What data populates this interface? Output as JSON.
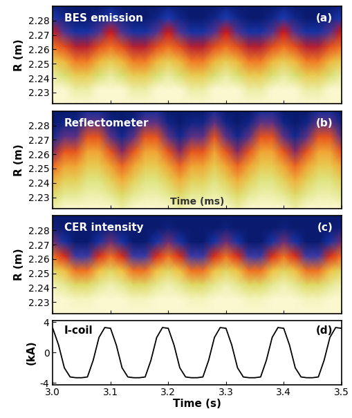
{
  "chart_data": [
    {
      "type": "heatmap",
      "title": "BES emission",
      "annotations": [
        "(a)"
      ],
      "y_label": "R (m)",
      "x": [
        3.0,
        3.02,
        3.04,
        3.06,
        3.08,
        3.1,
        3.12,
        3.14,
        3.16,
        3.18,
        3.2,
        3.22,
        3.24,
        3.26,
        3.28,
        3.3,
        3.32,
        3.34,
        3.36,
        3.38,
        3.4,
        3.42,
        3.44,
        3.46,
        3.48,
        3.5
      ],
      "y": [
        2.222,
        2.232,
        2.242,
        2.252,
        2.262,
        2.272,
        2.282,
        2.29
      ],
      "cells": [
        [
          1.0,
          1.0,
          1.0,
          1.0,
          1.0,
          1.0,
          1.0,
          1.0,
          1.0,
          1.0,
          1.0,
          1.0,
          1.0,
          1.0,
          1.0,
          1.0,
          1.0,
          1.0,
          1.0,
          1.0,
          1.0,
          1.0,
          1.0,
          1.0,
          1.0,
          1.0
        ],
        [
          1.0,
          1.0,
          0.93,
          0.93,
          1.0,
          1.0,
          1.0,
          0.93,
          0.93,
          1.0,
          1.0,
          1.0,
          0.93,
          0.93,
          1.0,
          1.0,
          1.0,
          0.93,
          0.93,
          1.0,
          1.0,
          1.0,
          0.93,
          0.93,
          1.0,
          1.0
        ],
        [
          0.92,
          0.85,
          0.75,
          0.75,
          0.85,
          0.92,
          0.85,
          0.75,
          0.75,
          0.85,
          0.92,
          0.85,
          0.75,
          0.75,
          0.85,
          0.92,
          0.85,
          0.75,
          0.75,
          0.85,
          0.92,
          0.85,
          0.75,
          0.75,
          0.85,
          0.92
        ],
        [
          0.75,
          0.67,
          0.52,
          0.52,
          0.67,
          0.75,
          0.67,
          0.52,
          0.52,
          0.67,
          0.75,
          0.67,
          0.52,
          0.52,
          0.67,
          0.75,
          0.67,
          0.52,
          0.52,
          0.67,
          0.75,
          0.67,
          0.52,
          0.52,
          0.67,
          0.75
        ],
        [
          0.5,
          0.42,
          0.27,
          0.27,
          0.42,
          0.5,
          0.42,
          0.27,
          0.27,
          0.42,
          0.5,
          0.42,
          0.27,
          0.27,
          0.42,
          0.5,
          0.42,
          0.27,
          0.27,
          0.42,
          0.5,
          0.42,
          0.27,
          0.27,
          0.42,
          0.5
        ],
        [
          0.3,
          0.17,
          0.08,
          0.08,
          0.17,
          0.3,
          0.17,
          0.08,
          0.08,
          0.17,
          0.3,
          0.17,
          0.08,
          0.08,
          0.17,
          0.3,
          0.17,
          0.08,
          0.08,
          0.17,
          0.3,
          0.17,
          0.08,
          0.08,
          0.17,
          0.3
        ],
        [
          0.1,
          0.04,
          0.0,
          0.0,
          0.04,
          0.1,
          0.04,
          0.0,
          0.0,
          0.04,
          0.1,
          0.04,
          0.0,
          0.0,
          0.04,
          0.1,
          0.04,
          0.0,
          0.0,
          0.04,
          0.1,
          0.04,
          0.0,
          0.0,
          0.04,
          0.1
        ],
        [
          0.03,
          0.0,
          0.0,
          0.0,
          0.0,
          0.03,
          0.0,
          0.0,
          0.0,
          0.0,
          0.03,
          0.0,
          0.0,
          0.0,
          0.0,
          0.03,
          0.0,
          0.0,
          0.0,
          0.0,
          0.03,
          0.0,
          0.0,
          0.0,
          0.0,
          0.03
        ]
      ],
      "xlim": [
        3.0,
        3.5
      ],
      "ylim": [
        2.222,
        2.29
      ],
      "xticks": [
        3.0,
        3.1,
        3.2,
        3.3,
        3.4,
        3.5
      ],
      "yticks": [
        2.23,
        2.24,
        2.25,
        2.26,
        2.27,
        2.28
      ],
      "tick_labels": "y"
    },
    {
      "type": "heatmap",
      "title": "Reflectometer",
      "annotations": [
        "(b)",
        "Time (ms)"
      ],
      "y_label": "R (m)",
      "x": [
        3.0,
        3.02,
        3.04,
        3.06,
        3.08,
        3.1,
        3.12,
        3.14,
        3.16,
        3.18,
        3.2,
        3.22,
        3.24,
        3.26,
        3.28,
        3.3,
        3.32,
        3.34,
        3.36,
        3.38,
        3.4,
        3.42,
        3.44,
        3.46,
        3.48,
        3.5
      ],
      "y": [
        2.222,
        2.232,
        2.242,
        2.252,
        2.262,
        2.272,
        2.282,
        2.29
      ],
      "cells": [
        [
          0.75,
          0.8,
          0.8,
          0.8,
          0.8,
          0.8,
          0.75,
          0.8,
          0.8,
          0.8,
          0.8,
          0.75,
          0.8,
          0.8,
          0.8,
          0.8,
          0.75,
          0.8,
          0.8,
          0.8,
          0.8,
          0.75,
          0.8,
          0.8,
          0.8,
          0.8
        ],
        [
          0.65,
          0.72,
          0.72,
          0.75,
          0.75,
          0.72,
          0.65,
          0.72,
          0.75,
          0.75,
          0.72,
          0.65,
          0.72,
          0.72,
          0.75,
          0.72,
          0.65,
          0.72,
          0.75,
          0.75,
          0.72,
          0.65,
          0.72,
          0.75,
          0.75,
          0.72
        ],
        [
          0.52,
          0.62,
          0.62,
          0.7,
          0.7,
          0.62,
          0.52,
          0.62,
          0.7,
          0.7,
          0.62,
          0.52,
          0.62,
          0.62,
          0.7,
          0.62,
          0.52,
          0.62,
          0.7,
          0.7,
          0.62,
          0.52,
          0.62,
          0.7,
          0.7,
          0.62
        ],
        [
          0.38,
          0.5,
          0.5,
          0.6,
          0.6,
          0.5,
          0.38,
          0.5,
          0.6,
          0.6,
          0.5,
          0.38,
          0.5,
          0.5,
          0.6,
          0.5,
          0.38,
          0.5,
          0.6,
          0.6,
          0.5,
          0.38,
          0.5,
          0.6,
          0.6,
          0.5
        ],
        [
          0.18,
          0.35,
          0.35,
          0.5,
          0.5,
          0.35,
          0.18,
          0.35,
          0.5,
          0.5,
          0.35,
          0.18,
          0.35,
          0.35,
          0.5,
          0.35,
          0.18,
          0.35,
          0.5,
          0.5,
          0.35,
          0.18,
          0.35,
          0.5,
          0.5,
          0.35
        ],
        [
          0.04,
          0.15,
          0.15,
          0.35,
          0.35,
          0.15,
          0.04,
          0.15,
          0.35,
          0.35,
          0.15,
          0.04,
          0.15,
          0.15,
          0.35,
          0.15,
          0.04,
          0.15,
          0.35,
          0.35,
          0.15,
          0.04,
          0.15,
          0.35,
          0.35,
          0.15
        ],
        [
          0.0,
          0.03,
          0.03,
          0.15,
          0.15,
          0.03,
          0.0,
          0.03,
          0.15,
          0.15,
          0.03,
          0.0,
          0.03,
          0.03,
          0.15,
          0.03,
          0.0,
          0.03,
          0.15,
          0.15,
          0.03,
          0.0,
          0.03,
          0.15,
          0.15,
          0.03
        ],
        [
          0.0,
          0.0,
          0.0,
          0.05,
          0.05,
          0.0,
          0.0,
          0.0,
          0.05,
          0.05,
          0.0,
          0.0,
          0.0,
          0.0,
          0.05,
          0.0,
          0.0,
          0.0,
          0.05,
          0.05,
          0.0,
          0.0,
          0.0,
          0.05,
          0.05,
          0.0
        ]
      ],
      "xlim": [
        3.0,
        3.5
      ],
      "ylim": [
        2.222,
        2.29
      ],
      "xticks": [
        3.0,
        3.1,
        3.2,
        3.3,
        3.4,
        3.5
      ],
      "yticks": [
        2.23,
        2.24,
        2.25,
        2.26,
        2.27,
        2.28
      ],
      "tick_labels": "y"
    },
    {
      "type": "heatmap",
      "title": "CER intensity",
      "annotations": [
        "(c)"
      ],
      "y_label": "R (m)",
      "x": [
        3.0,
        3.02,
        3.04,
        3.06,
        3.08,
        3.1,
        3.12,
        3.14,
        3.16,
        3.18,
        3.2,
        3.22,
        3.24,
        3.26,
        3.28,
        3.3,
        3.32,
        3.34,
        3.36,
        3.38,
        3.4,
        3.42,
        3.44,
        3.46,
        3.48,
        3.5
      ],
      "y": [
        2.222,
        2.232,
        2.242,
        2.252,
        2.262,
        2.272,
        2.282,
        2.29
      ],
      "cells": [
        [
          1.0,
          1.0,
          1.0,
          1.0,
          1.0,
          1.0,
          1.0,
          1.0,
          1.0,
          1.0,
          1.0,
          1.0,
          1.0,
          1.0,
          1.0,
          1.0,
          1.0,
          1.0,
          1.0,
          1.0,
          1.0,
          1.0,
          1.0,
          1.0,
          1.0,
          1.0
        ],
        [
          1.0,
          1.0,
          0.97,
          0.97,
          1.0,
          1.0,
          1.0,
          0.97,
          0.97,
          1.0,
          1.0,
          1.0,
          0.97,
          0.97,
          1.0,
          1.0,
          1.0,
          0.97,
          0.97,
          1.0,
          1.0,
          1.0,
          0.97,
          0.97,
          1.0,
          1.0
        ],
        [
          0.95,
          0.9,
          0.82,
          0.82,
          0.9,
          0.95,
          0.9,
          0.82,
          0.82,
          0.9,
          0.95,
          0.9,
          0.82,
          0.82,
          0.9,
          0.95,
          0.9,
          0.82,
          0.82,
          0.9,
          0.95,
          0.9,
          0.82,
          0.82,
          0.9,
          0.95
        ],
        [
          0.8,
          0.7,
          0.5,
          0.5,
          0.7,
          0.8,
          0.7,
          0.5,
          0.5,
          0.7,
          0.8,
          0.7,
          0.5,
          0.5,
          0.7,
          0.8,
          0.7,
          0.5,
          0.5,
          0.7,
          0.8,
          0.7,
          0.5,
          0.5,
          0.7,
          0.8
        ],
        [
          0.5,
          0.35,
          0.15,
          0.15,
          0.35,
          0.5,
          0.35,
          0.15,
          0.15,
          0.35,
          0.5,
          0.35,
          0.15,
          0.15,
          0.35,
          0.5,
          0.35,
          0.15,
          0.15,
          0.35,
          0.5,
          0.35,
          0.15,
          0.15,
          0.35,
          0.5
        ],
        [
          0.2,
          0.08,
          0.0,
          0.0,
          0.08,
          0.2,
          0.08,
          0.0,
          0.0,
          0.08,
          0.2,
          0.08,
          0.0,
          0.0,
          0.08,
          0.2,
          0.08,
          0.0,
          0.0,
          0.08,
          0.2,
          0.08,
          0.0,
          0.0,
          0.08,
          0.2
        ],
        [
          0.02,
          0.0,
          0.0,
          0.0,
          0.0,
          0.02,
          0.0,
          0.0,
          0.0,
          0.0,
          0.02,
          0.0,
          0.0,
          0.0,
          0.0,
          0.02,
          0.0,
          0.0,
          0.0,
          0.0,
          0.02,
          0.0,
          0.0,
          0.0,
          0.0,
          0.02
        ],
        [
          0.0,
          0.0,
          0.0,
          0.0,
          0.0,
          0.0,
          0.0,
          0.0,
          0.0,
          0.0,
          0.0,
          0.0,
          0.0,
          0.0,
          0.0,
          0.0,
          0.0,
          0.0,
          0.0,
          0.0,
          0.0,
          0.0,
          0.0,
          0.0,
          0.0,
          0.0
        ]
      ],
      "xlim": [
        3.0,
        3.5
      ],
      "ylim": [
        2.222,
        2.29
      ],
      "xticks": [
        3.0,
        3.1,
        3.2,
        3.3,
        3.4,
        3.5
      ],
      "yticks": [
        2.23,
        2.24,
        2.25,
        2.26,
        2.27,
        2.28
      ],
      "tick_labels": "y"
    },
    {
      "type": "line",
      "title": "I-coil",
      "annotations": [
        "(d)"
      ],
      "y_label": "(kA)",
      "x_label": "Time (s)",
      "x": [
        3.0,
        3.01,
        3.02,
        3.03,
        3.04,
        3.05,
        3.06,
        3.07,
        3.08,
        3.09,
        3.1,
        3.11,
        3.12,
        3.13,
        3.14,
        3.15,
        3.16,
        3.17,
        3.18,
        3.19,
        3.2,
        3.21,
        3.22,
        3.23,
        3.24,
        3.25,
        3.26,
        3.27,
        3.28,
        3.29,
        3.3,
        3.31,
        3.32,
        3.33,
        3.34,
        3.35,
        3.36,
        3.37,
        3.38,
        3.39,
        3.4,
        3.41,
        3.42,
        3.43,
        3.44,
        3.45,
        3.46,
        3.47,
        3.48,
        3.49,
        3.5
      ],
      "values": [
        3.2,
        1.0,
        -2.0,
        -3.2,
        -3.3,
        -3.3,
        -3.2,
        -1.0,
        2.0,
        3.3,
        3.2,
        1.0,
        -2.0,
        -3.2,
        -3.3,
        -3.3,
        -3.2,
        -1.0,
        2.0,
        3.3,
        3.2,
        1.0,
        -2.0,
        -3.2,
        -3.3,
        -3.3,
        -3.2,
        -1.0,
        2.0,
        3.3,
        3.2,
        1.0,
        -2.0,
        -3.2,
        -3.3,
        -3.3,
        -3.2,
        -1.0,
        2.0,
        3.3,
        3.2,
        1.0,
        -2.0,
        -3.2,
        -3.3,
        -3.3,
        -3.2,
        -1.0,
        2.0,
        3.3,
        3.2
      ],
      "color": "#000000",
      "xlim": [
        3.0,
        3.5
      ],
      "ylim": [
        -4.2,
        4.2
      ],
      "xticks": [
        3.0,
        3.1,
        3.2,
        3.3,
        3.4,
        3.5
      ],
      "yticks": [
        -4,
        0,
        4
      ]
    }
  ]
}
